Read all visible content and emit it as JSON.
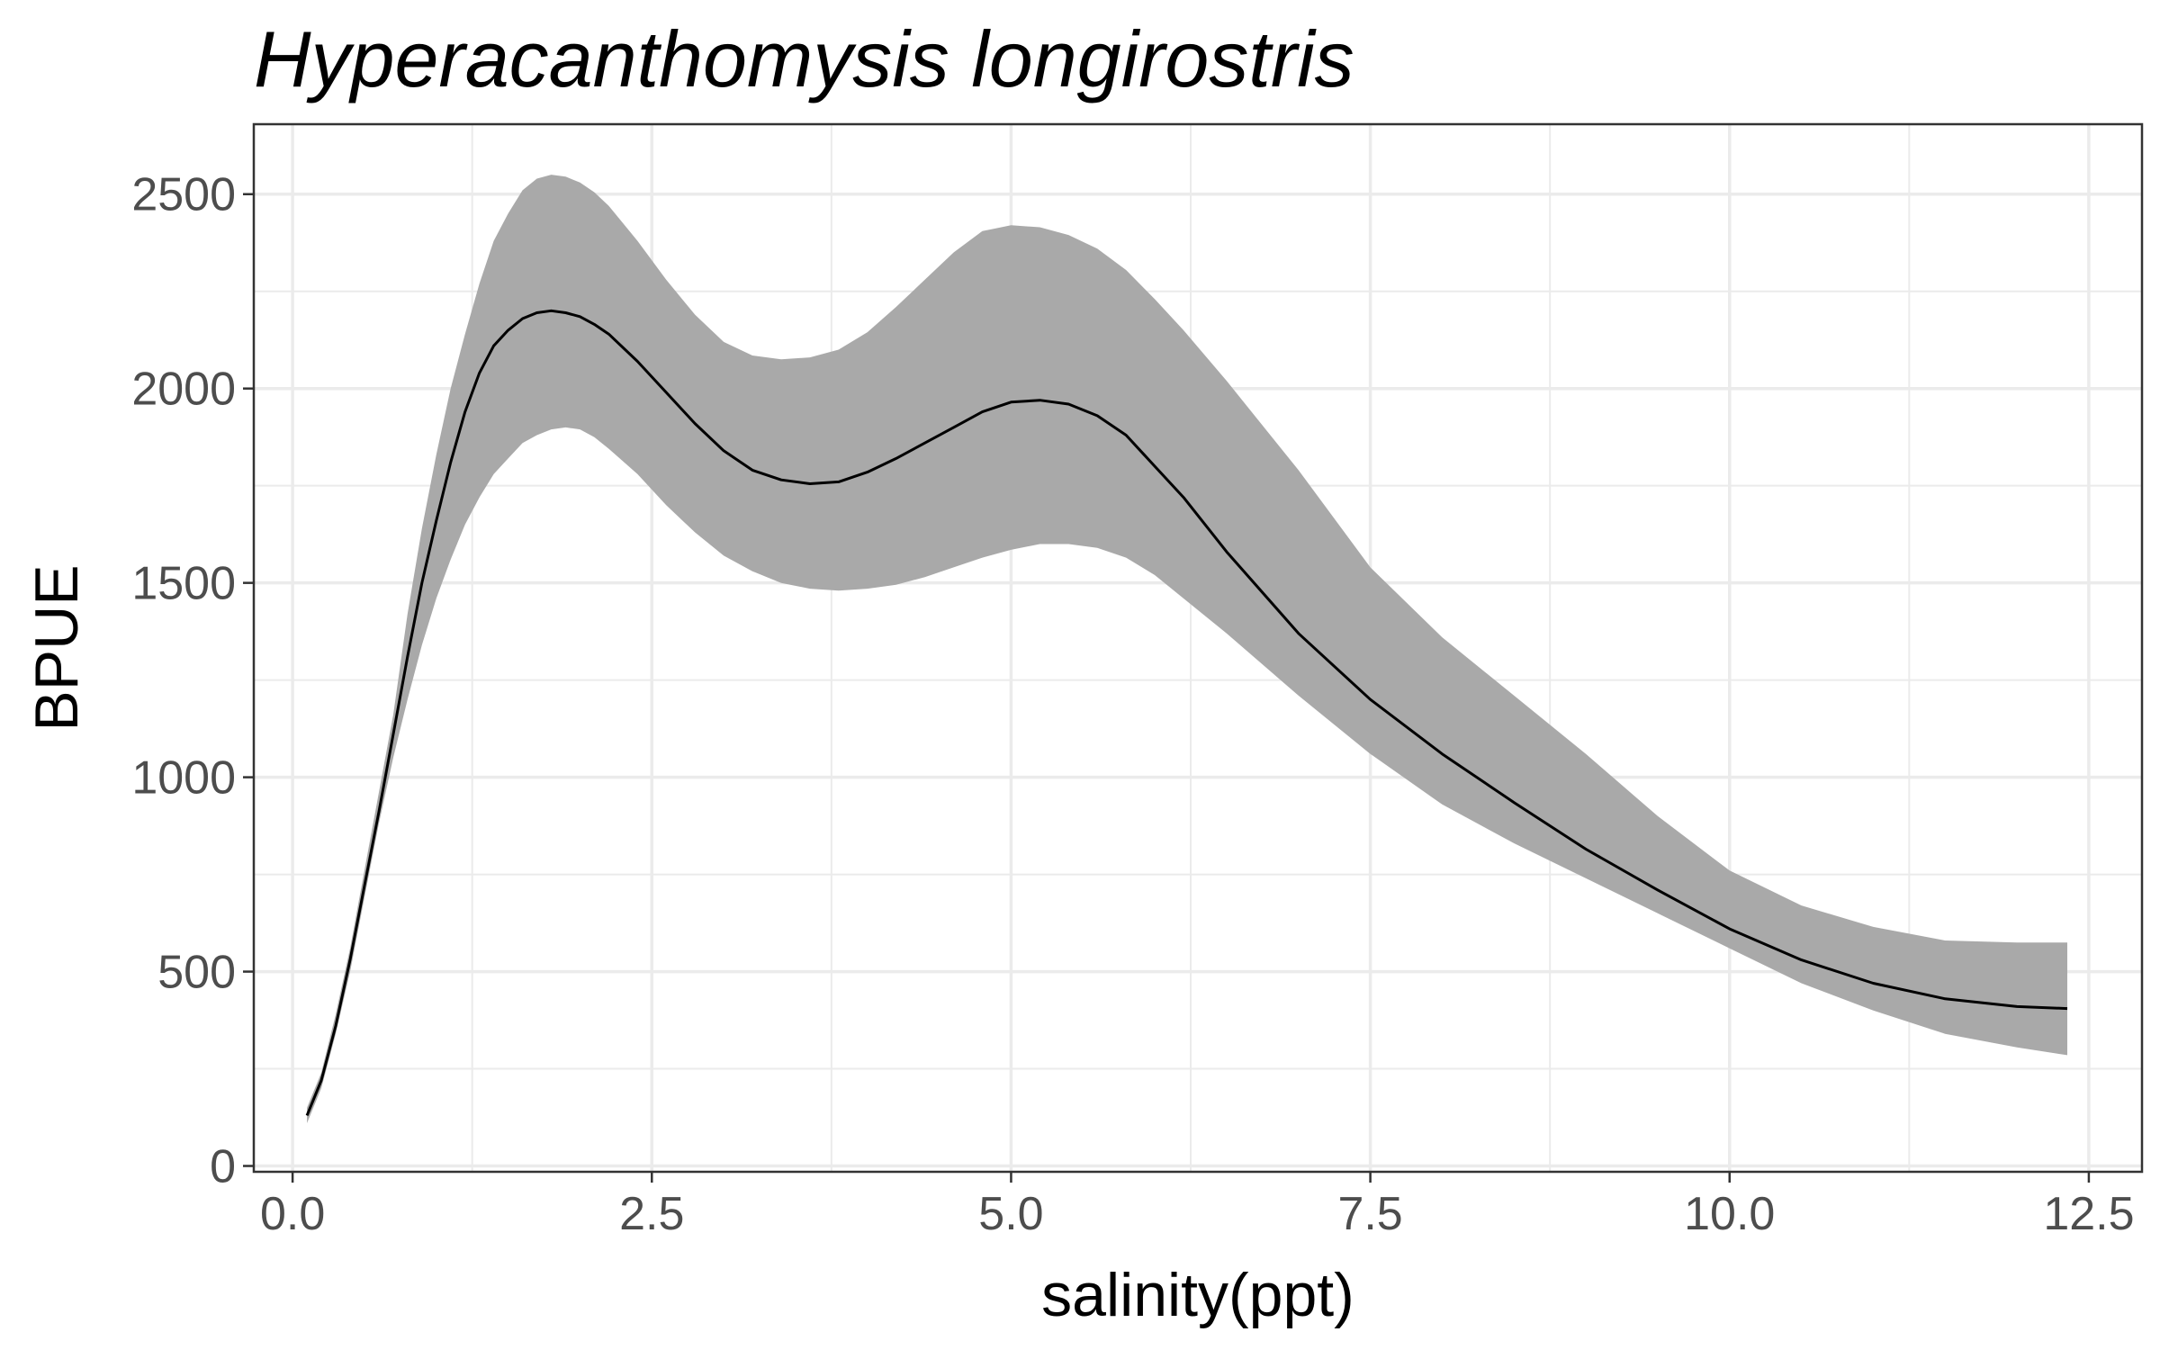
{
  "chart_data": {
    "type": "area",
    "title": "Hyperacanthomysis longirostris",
    "xlabel": "salinity(ppt)",
    "ylabel": "BPUE",
    "xlim": [
      -0.27,
      12.87
    ],
    "ylim": [
      -15,
      2680
    ],
    "x_ticks": [
      0.0,
      2.5,
      5.0,
      7.5,
      10.0,
      12.5
    ],
    "x_tick_labels": [
      "0.0",
      "2.5",
      "5.0",
      "7.5",
      "10.0",
      "12.5"
    ],
    "y_ticks": [
      0,
      500,
      1000,
      1500,
      2000,
      2500
    ],
    "y_tick_labels": [
      "0",
      "500",
      "1000",
      "1500",
      "2000",
      "2500"
    ],
    "grid": true,
    "colors": {
      "ribbon": "#a9a9a9",
      "line": "#000000",
      "grid": "#ebebeb",
      "panel_border": "#333333"
    },
    "series": [
      {
        "type": "line",
        "x": [
          0.1,
          0.2,
          0.3,
          0.4,
          0.5,
          0.6,
          0.7,
          0.8,
          0.9,
          1.0,
          1.1,
          1.2,
          1.3,
          1.4,
          1.5,
          1.6,
          1.7,
          1.8,
          1.9,
          2.0,
          2.1,
          2.2,
          2.4,
          2.6,
          2.8,
          3.0,
          3.2,
          3.4,
          3.6,
          3.8,
          4.0,
          4.2,
          4.4,
          4.6,
          4.8,
          5.0,
          5.2,
          5.4,
          5.6,
          5.8,
          6.0,
          6.2,
          6.5,
          7.0,
          7.5,
          8.0,
          8.5,
          9.0,
          9.5,
          10.0,
          10.5,
          11.0,
          11.5,
          12.0,
          12.35
        ],
        "y": [
          130,
          220,
          360,
          530,
          720,
          910,
          1110,
          1310,
          1500,
          1660,
          1810,
          1940,
          2040,
          2110,
          2150,
          2180,
          2195,
          2200,
          2195,
          2185,
          2165,
          2140,
          2070,
          1990,
          1910,
          1840,
          1790,
          1765,
          1755,
          1760,
          1785,
          1820,
          1860,
          1900,
          1940,
          1965,
          1970,
          1960,
          1930,
          1880,
          1800,
          1720,
          1580,
          1370,
          1200,
          1060,
          935,
          815,
          710,
          610,
          530,
          470,
          430,
          410,
          405
        ]
      },
      {
        "type": "ribbon",
        "x": [
          0.1,
          0.2,
          0.3,
          0.4,
          0.5,
          0.6,
          0.7,
          0.8,
          0.9,
          1.0,
          1.1,
          1.2,
          1.3,
          1.4,
          1.5,
          1.6,
          1.7,
          1.8,
          1.9,
          2.0,
          2.1,
          2.2,
          2.4,
          2.6,
          2.8,
          3.0,
          3.2,
          3.4,
          3.6,
          3.8,
          4.0,
          4.2,
          4.4,
          4.6,
          4.8,
          5.0,
          5.2,
          5.4,
          5.6,
          5.8,
          6.0,
          6.2,
          6.5,
          7.0,
          7.5,
          8.0,
          8.5,
          9.0,
          9.5,
          10.0,
          10.5,
          11.0,
          11.5,
          12.0,
          12.35
        ],
        "lower": [
          110,
          200,
          340,
          500,
          690,
          880,
          1050,
          1200,
          1340,
          1460,
          1560,
          1650,
          1720,
          1780,
          1820,
          1860,
          1880,
          1895,
          1900,
          1895,
          1875,
          1845,
          1780,
          1700,
          1630,
          1570,
          1530,
          1500,
          1485,
          1480,
          1485,
          1495,
          1515,
          1540,
          1565,
          1585,
          1600,
          1600,
          1590,
          1565,
          1520,
          1460,
          1370,
          1210,
          1060,
          930,
          830,
          740,
          650,
          560,
          470,
          400,
          340,
          305,
          285
        ],
        "upper": [
          150,
          240,
          390,
          560,
          760,
          960,
          1160,
          1420,
          1640,
          1830,
          2000,
          2140,
          2270,
          2380,
          2450,
          2510,
          2540,
          2550,
          2545,
          2530,
          2505,
          2470,
          2380,
          2280,
          2190,
          2120,
          2085,
          2075,
          2080,
          2100,
          2145,
          2210,
          2280,
          2350,
          2405,
          2420,
          2415,
          2395,
          2360,
          2305,
          2230,
          2150,
          2020,
          1790,
          1540,
          1360,
          1210,
          1060,
          900,
          760,
          670,
          615,
          580,
          575,
          575
        ]
      }
    ]
  }
}
